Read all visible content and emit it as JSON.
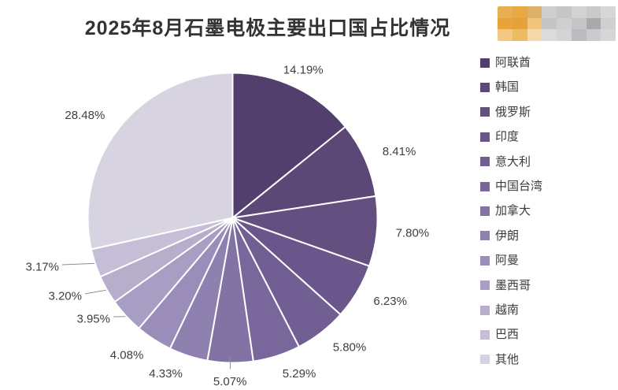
{
  "title": "2025年8月石墨电极主要出口国占比情况",
  "colors": {
    "background": "#ffffff",
    "title_text": "#333333",
    "label_text": "#3e3e3e",
    "slice_stroke": "#ffffff",
    "leader_line": "#8f8f8f"
  },
  "chart_data": {
    "type": "pie",
    "title": "2025年8月石墨电极主要出口国占比情况",
    "legend_position": "right",
    "rotation": "clockwise_from_top",
    "label_format": "percent_outside",
    "slices": [
      {
        "label": "阿联酋",
        "value": 14.19,
        "display": "14.19%",
        "color": "#533f6e",
        "leader": false
      },
      {
        "label": "韩国",
        "value": 8.41,
        "display": "8.41%",
        "color": "#5b4877",
        "leader": false
      },
      {
        "label": "俄罗斯",
        "value": 7.8,
        "display": "7.80%",
        "color": "#635080",
        "leader": false
      },
      {
        "label": "印度",
        "value": 6.23,
        "display": "6.23%",
        "color": "#6a568a",
        "leader": false
      },
      {
        "label": "意大利",
        "value": 5.8,
        "display": "5.80%",
        "color": "#715e93",
        "leader": false
      },
      {
        "label": "中国台湾",
        "value": 5.29,
        "display": "5.29%",
        "color": "#79679c",
        "leader": false
      },
      {
        "label": "加拿大",
        "value": 5.07,
        "display": "5.07%",
        "color": "#8373a5",
        "leader": true
      },
      {
        "label": "伊朗",
        "value": 4.33,
        "display": "4.33%",
        "color": "#8e80af",
        "leader": false
      },
      {
        "label": "阿曼",
        "value": 4.08,
        "display": "4.08%",
        "color": "#9a8db9",
        "leader": false
      },
      {
        "label": "墨西哥",
        "value": 3.95,
        "display": "3.95%",
        "color": "#a89dc3",
        "leader": true
      },
      {
        "label": "越南",
        "value": 3.2,
        "display": "3.20%",
        "color": "#b6aecb",
        "leader": true
      },
      {
        "label": "巴西",
        "value": 3.17,
        "display": "3.17%",
        "color": "#c5bed6",
        "leader": true
      },
      {
        "label": "其他",
        "value": 28.48,
        "display": "28.48%",
        "color": "#d7d3e1",
        "leader": false
      }
    ]
  },
  "logo": {
    "description": "pixelated-redacted-logo",
    "rows": 3,
    "cols": 8,
    "pixels": [
      [
        "#e7ae52",
        "#e9a843",
        "#ddb168",
        "#cfcdce",
        "#c6c5c7",
        "#d3d2d3",
        "#c9c8ca",
        "#d8d7d8"
      ],
      [
        "#e9a33c",
        "#e7a13a",
        "#eec47f",
        "#c4c3c5",
        "#cfced0",
        "#c5c4c6",
        "#a9a8aa",
        "#cfced0"
      ],
      [
        "#f2c883",
        "#edbb61",
        "#f6d9a8",
        "#dcdbdc",
        "#d4d3d5",
        "#bcbbbd",
        "#cbcacc",
        "#d6d5d7"
      ]
    ]
  }
}
